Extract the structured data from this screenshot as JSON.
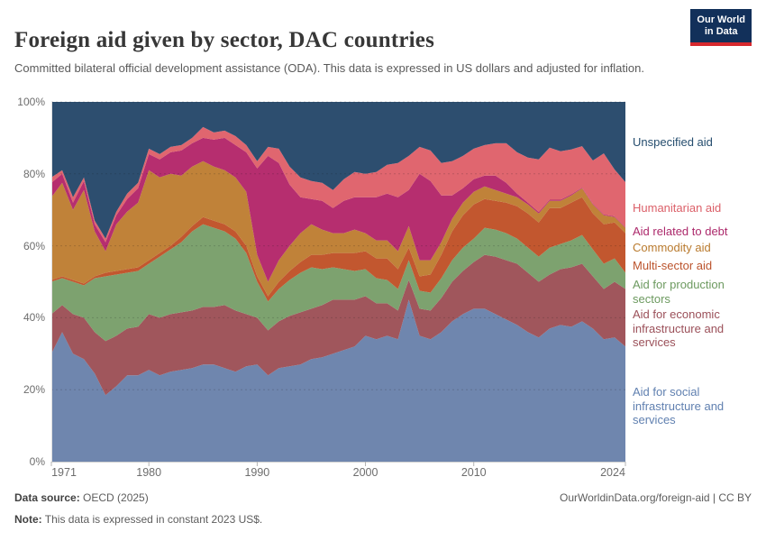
{
  "header": {
    "title": "Foreign aid given by sector, DAC countries",
    "subtitle": "Committed bilateral official development assistance (ODA). This data is expressed in US dollars and adjusted for inflation.",
    "logo": {
      "line1": "Our World",
      "line2": "in Data",
      "bg_color": "#12305a",
      "accent_color": "#d7282e"
    }
  },
  "chart_data": {
    "type": "area",
    "stacked": true,
    "percentage": true,
    "title": "Foreign aid given by sector, DAC countries",
    "xlabel": "",
    "ylabel": "",
    "ylim": [
      0,
      100
    ],
    "grid": "dashed-horizontal",
    "legend_position": "right",
    "x": [
      1971,
      1972,
      1973,
      1974,
      1975,
      1976,
      1977,
      1978,
      1979,
      1980,
      1981,
      1982,
      1983,
      1984,
      1985,
      1986,
      1987,
      1988,
      1989,
      1990,
      1991,
      1992,
      1993,
      1994,
      1995,
      1996,
      1997,
      1998,
      1999,
      2000,
      2001,
      2002,
      2003,
      2004,
      2005,
      2006,
      2007,
      2008,
      2009,
      2010,
      2011,
      2012,
      2013,
      2014,
      2015,
      2016,
      2017,
      2018,
      2019,
      2020,
      2021,
      2022,
      2023,
      2024
    ],
    "x_ticks": [
      {
        "value": 1971,
        "label": "1971"
      },
      {
        "value": 1980,
        "label": "1980"
      },
      {
        "value": 1990,
        "label": "1990"
      },
      {
        "value": 2000,
        "label": "2000"
      },
      {
        "value": 2010,
        "label": "2010"
      },
      {
        "value": 2024,
        "label": "2024"
      }
    ],
    "y_ticks": [
      {
        "value": 0,
        "label": "0%"
      },
      {
        "value": 20,
        "label": "20%"
      },
      {
        "value": 40,
        "label": "40%"
      },
      {
        "value": 60,
        "label": "60%"
      },
      {
        "value": 80,
        "label": "80%"
      },
      {
        "value": 100,
        "label": "100%"
      }
    ],
    "series": [
      {
        "name": "Aid for social infrastructure and services",
        "color": "#6f86ae",
        "text_color": "#6080b0",
        "values": [
          30,
          36,
          30,
          28.5,
          24.5,
          18.5,
          21,
          24,
          24,
          25.5,
          24,
          25,
          25.5,
          26,
          27,
          27,
          26,
          25,
          26.5,
          27,
          24,
          26,
          26.5,
          27,
          28.5,
          29,
          30,
          31,
          32,
          35,
          34,
          35,
          34,
          45,
          35,
          34,
          36,
          39,
          41,
          42.5,
          42.5,
          41,
          39.5,
          38,
          36,
          34.5,
          37,
          38,
          37.5,
          39,
          37,
          34,
          34.5,
          32
        ]
      },
      {
        "name": "Aid for economic infrastructure and services",
        "color": "#a0565c",
        "text_color": "#9b5059",
        "values": [
          11,
          7.5,
          11,
          11.5,
          11.5,
          15,
          14,
          13,
          13.5,
          15.5,
          16,
          16,
          16,
          16,
          16,
          16,
          17.5,
          17,
          14.5,
          13,
          12.5,
          13,
          14,
          14.5,
          14,
          14.5,
          15,
          14,
          13,
          11,
          10,
          9,
          8,
          5.5,
          7.5,
          8,
          9.5,
          11,
          12,
          13,
          15,
          16,
          16.5,
          17,
          16.5,
          15.5,
          15,
          15.5,
          16.5,
          16,
          14.5,
          14,
          15.5,
          16
        ]
      },
      {
        "name": "Aid for production sectors",
        "color": "#7da26f",
        "text_color": "#6d9a60",
        "values": [
          9,
          7.5,
          9,
          9,
          15,
          18,
          17,
          15.5,
          15.5,
          14,
          17,
          18,
          19.5,
          22,
          23,
          22,
          20.5,
          20,
          17,
          10,
          8,
          9,
          10,
          11,
          11.5,
          10,
          9,
          8.5,
          8,
          7.5,
          7,
          6.5,
          6,
          5.5,
          5,
          5,
          5.5,
          6,
          6.5,
          6.5,
          7.5,
          7.5,
          7.5,
          7,
          7,
          7,
          7.5,
          7,
          7.5,
          8,
          7.5,
          7,
          6.5,
          4.5
        ]
      },
      {
        "name": "Multi-sector aid",
        "color": "#c2572f",
        "text_color": "#bb532c",
        "values": [
          0.5,
          0.5,
          0.5,
          0.5,
          0.5,
          1,
          1,
          1,
          1,
          1,
          1,
          1,
          1.5,
          1.5,
          2,
          2,
          2,
          2,
          2,
          1.5,
          1.5,
          2,
          2.5,
          3,
          3.5,
          4,
          4,
          4.5,
          5,
          5,
          5.5,
          6,
          5.5,
          3.5,
          4,
          5,
          6.5,
          8,
          9,
          9.5,
          8,
          8,
          8.5,
          9,
          9.5,
          9.5,
          11,
          10,
          10.5,
          10.5,
          10,
          11,
          10,
          11
        ]
      },
      {
        "name": "Commodity aid",
        "color": "#c08239",
        "text_color": "#b97a2e",
        "values": [
          23,
          26,
          19.5,
          26,
          12.5,
          6,
          13,
          16,
          18,
          25,
          21,
          20,
          17,
          16.5,
          15.5,
          15,
          15,
          15,
          15,
          6,
          4,
          6,
          7,
          8,
          8.5,
          7,
          5.5,
          5.5,
          6.5,
          5,
          5,
          5,
          5,
          6,
          4.5,
          4,
          3.5,
          3.5,
          3.5,
          3.5,
          3.5,
          3,
          2.5,
          2.5,
          2.5,
          2.5,
          2,
          2,
          2,
          2.5,
          2.5,
          2.5,
          1.5,
          1.5
        ]
      },
      {
        "name": "Aid related to debt",
        "color": "#b62e6f",
        "text_color": "#ac296b",
        "values": [
          4,
          2.5,
          2,
          2.5,
          2,
          2.5,
          2.5,
          3.5,
          4,
          4.5,
          5,
          6,
          7,
          6.5,
          6.5,
          7.5,
          9,
          9,
          11,
          24,
          35,
          27,
          17,
          10,
          7,
          8,
          7,
          9,
          9,
          10,
          12,
          13,
          15,
          10,
          24,
          22,
          13,
          6.5,
          4,
          3.5,
          3,
          4,
          3,
          1,
          0.5,
          0.4,
          0.3,
          0.3,
          0.3,
          0.2,
          0.2,
          0.2,
          0.2,
          0.2
        ]
      },
      {
        "name": "Humanitarian aid",
        "color": "#e0666f",
        "text_color": "#db5f68",
        "values": [
          1.5,
          1,
          1.5,
          1,
          1,
          1,
          1,
          1.5,
          1.5,
          1.5,
          1.5,
          1.5,
          1.5,
          1.5,
          3,
          2,
          2,
          2.5,
          2,
          2,
          2.5,
          4,
          5,
          5.5,
          5,
          5,
          5,
          6,
          7,
          6.5,
          7,
          8,
          9.5,
          9.5,
          7.5,
          8.5,
          9,
          9.5,
          9,
          8.5,
          8.5,
          9,
          11,
          11.5,
          12.5,
          14.6,
          14.5,
          13.5,
          12.5,
          11.5,
          12,
          17,
          13,
          12.5
        ]
      },
      {
        "name": "Unspecified aid",
        "color": "#2d4e6f",
        "text_color": "#254d6e",
        "values": [
          21,
          19,
          26.5,
          21,
          33,
          38,
          30.5,
          25.5,
          22.5,
          13,
          14.5,
          12.5,
          12,
          10,
          7,
          8.5,
          8,
          9.5,
          12,
          16.5,
          12.5,
          13,
          18,
          21,
          22,
          22.5,
          24.5,
          21.5,
          19.5,
          20,
          19.5,
          17.5,
          17,
          15,
          12.5,
          13.5,
          17,
          16.5,
          15,
          13,
          12,
          11.5,
          11.5,
          14,
          15.5,
          16,
          12.7,
          13.7,
          13.2,
          12.3,
          16.3,
          14.3,
          18.8,
          22.3
        ]
      }
    ]
  },
  "footer": {
    "datasource_label": "Data source:",
    "datasource_value": " OECD (2025)",
    "note_label": "Note:",
    "note_value": " This data is expressed in constant 2023 US$.",
    "link": "OurWorldinData.org/foreign-aid | CC BY"
  }
}
